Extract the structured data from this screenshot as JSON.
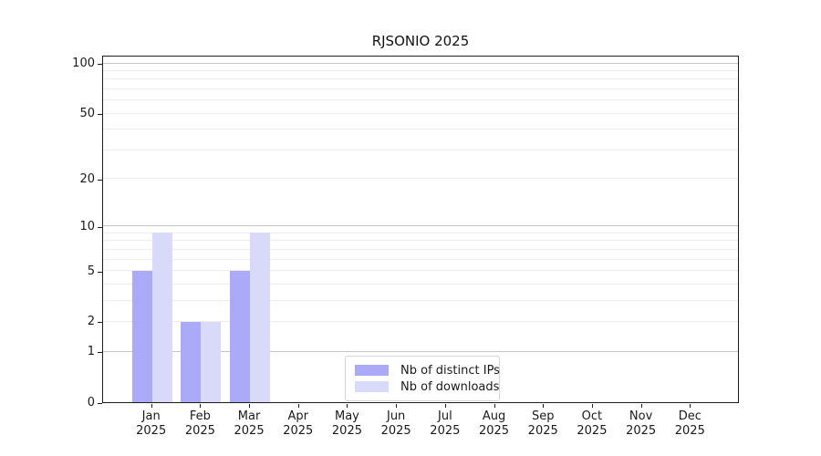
{
  "title": "RJSONIO 2025",
  "chart_data": {
    "type": "bar",
    "title": "RJSONIO 2025",
    "categories": [
      "Jan",
      "Feb",
      "Mar",
      "Apr",
      "May",
      "Jun",
      "Jul",
      "Aug",
      "Sep",
      "Oct",
      "Nov",
      "Dec"
    ],
    "x_sublabel": "2025",
    "series": [
      {
        "name": "Nb of distinct IPs",
        "color": "#aaaaf8",
        "values": [
          5,
          2,
          5,
          0,
          0,
          0,
          0,
          0,
          0,
          0,
          0,
          0
        ]
      },
      {
        "name": "Nb of downloads",
        "color": "#d9d9f9",
        "values": [
          9,
          2,
          9,
          0,
          0,
          0,
          0,
          0,
          0,
          0,
          0,
          0
        ]
      }
    ],
    "xlabel": "",
    "ylabel": "",
    "y_axis": {
      "scale": "log1p",
      "tick_values": [
        0,
        1,
        2,
        5,
        10,
        20,
        50,
        100
      ],
      "top_value": 112,
      "major_gridlines": [
        1,
        10,
        100
      ],
      "minor_gridlines": [
        2,
        3,
        4,
        5,
        6,
        7,
        8,
        9,
        20,
        30,
        40,
        50,
        60,
        70,
        80,
        90
      ],
      "grid": true
    },
    "legend": {
      "position": "lower center, inside plot",
      "entries": [
        "Nb of distinct IPs",
        "Nb of downloads"
      ]
    },
    "colors": {
      "major_grid": "#c6c6c6",
      "minor_grid": "#ededed",
      "spine": "#1c1c1c",
      "text": "#1a1a1a"
    }
  }
}
